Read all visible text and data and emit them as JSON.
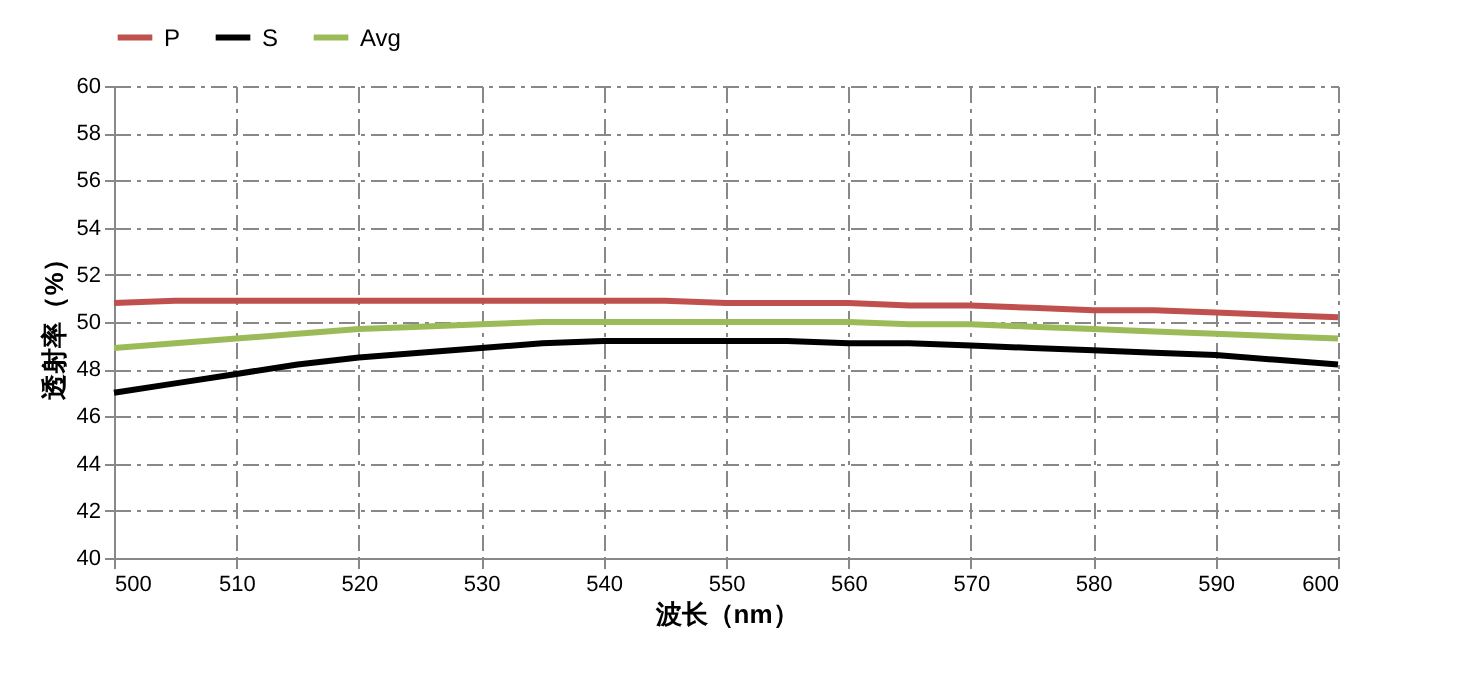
{
  "chart_data": {
    "type": "line",
    "xlabel": "波长（nm）",
    "ylabel": "透射率（%）",
    "x": [
      500,
      505,
      510,
      515,
      520,
      525,
      530,
      535,
      540,
      545,
      550,
      555,
      560,
      565,
      570,
      575,
      580,
      585,
      590,
      595,
      600
    ],
    "series": [
      {
        "name": "P",
        "color": "#c0504d",
        "values": [
          50.8,
          50.9,
          50.9,
          50.9,
          50.9,
          50.9,
          50.9,
          50.9,
          50.9,
          50.9,
          50.8,
          50.8,
          50.8,
          50.7,
          50.7,
          50.6,
          50.5,
          50.5,
          50.4,
          50.3,
          50.2
        ]
      },
      {
        "name": "S",
        "color": "#000000",
        "values": [
          47.0,
          47.4,
          47.8,
          48.2,
          48.5,
          48.7,
          48.9,
          49.1,
          49.2,
          49.2,
          49.2,
          49.2,
          49.1,
          49.1,
          49.0,
          48.9,
          48.8,
          48.7,
          48.6,
          48.4,
          48.2
        ]
      },
      {
        "name": "Avg",
        "color": "#9bbb59",
        "values": [
          48.9,
          49.1,
          49.3,
          49.5,
          49.7,
          49.8,
          49.9,
          50.0,
          50.0,
          50.0,
          50.0,
          50.0,
          50.0,
          49.9,
          49.9,
          49.8,
          49.7,
          49.6,
          49.5,
          49.4,
          49.3
        ]
      }
    ],
    "xlim": [
      500,
      600
    ],
    "xticks": [
      500,
      510,
      520,
      530,
      540,
      550,
      560,
      570,
      580,
      590,
      600
    ],
    "ylim": [
      40,
      60
    ],
    "yticks": [
      40,
      42,
      44,
      46,
      48,
      50,
      52,
      54,
      56,
      58,
      60
    ],
    "grid": true,
    "legend": "top",
    "line_style": "solid"
  }
}
